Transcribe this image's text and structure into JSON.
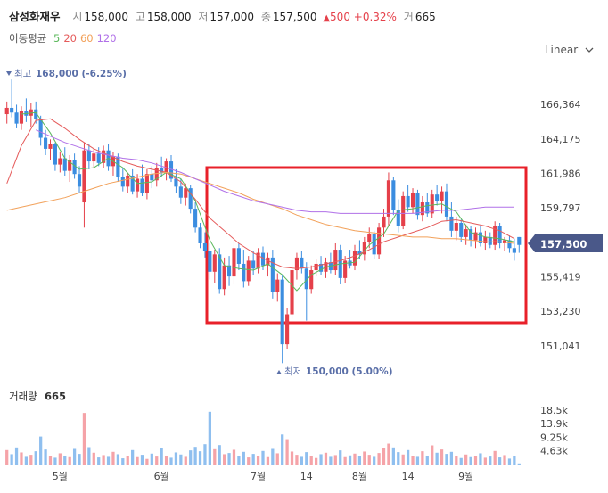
{
  "header": {
    "name": "삼성화재우",
    "items": [
      {
        "label": "시",
        "value": "158,000"
      },
      {
        "label": "고",
        "value": "158,000"
      },
      {
        "label": "저",
        "value": "157,000"
      },
      {
        "label": "종",
        "value": "157,500"
      }
    ],
    "change": "500",
    "change_pct": "+0.32%",
    "volume_label": "거",
    "volume": "665"
  },
  "chart_data": {
    "type": "candlestick",
    "ma_title": "이동평균",
    "scale_mode": "Linear",
    "max_label": {
      "prefix": "최고",
      "text": "168,000 (-6.25%)"
    },
    "min_label": {
      "prefix": "최저",
      "text": "150,000 (5.00%)"
    },
    "volume_title": "거래량",
    "volume_now": "665",
    "last_price": {
      "value": 157500,
      "label": "157,500"
    },
    "up_color": "#e5404a",
    "down_color": "#3b8de0",
    "volume_up_color": "#f5a3a8",
    "volume_down_color": "#8fbfef",
    "ylim": [
      149000,
      168800
    ],
    "yticks": [
      {
        "value": 166364,
        "label": "166,364"
      },
      {
        "value": 164175,
        "label": "164,175"
      },
      {
        "value": 161986,
        "label": "161,986"
      },
      {
        "value": 159797,
        "label": "159,797"
      },
      {
        "value": 155419,
        "label": "155,419"
      },
      {
        "value": 153230,
        "label": "153,230"
      },
      {
        "value": 151041,
        "label": "151,041"
      }
    ],
    "volume_lim": [
      0,
      24800
    ],
    "volume_ticks": [
      {
        "value": 18500,
        "label": "18.5k"
      },
      {
        "value": 13875,
        "label": "13.9k"
      },
      {
        "value": 9250,
        "label": "9.25k"
      },
      {
        "value": 4625,
        "label": "4.63k"
      }
    ],
    "xticks": [
      {
        "value": 11,
        "label": "5월"
      },
      {
        "value": 32,
        "label": "6월"
      },
      {
        "value": 52,
        "label": "7월"
      },
      {
        "value": 62,
        "label": "14"
      },
      {
        "value": 73,
        "label": "8월"
      },
      {
        "value": 83,
        "label": "14"
      },
      {
        "value": 95,
        "label": "9월"
      }
    ],
    "grid": false,
    "candles": [
      [
        165800,
        166600,
        165200,
        166200
      ],
      [
        166200,
        168000,
        165600,
        165900
      ],
      [
        165900,
        166400,
        164900,
        165200
      ],
      [
        165200,
        166300,
        164800,
        166000
      ],
      [
        166000,
        166800,
        165300,
        165700
      ],
      [
        165700,
        166500,
        165000,
        166100
      ],
      [
        166100,
        166600,
        165200,
        165500
      ],
      [
        165500,
        165700,
        163800,
        164300
      ],
      [
        164300,
        164800,
        163200,
        163600
      ],
      [
        163600,
        164200,
        162900,
        163900
      ],
      [
        163900,
        164000,
        162200,
        162600
      ],
      [
        162600,
        163400,
        162100,
        163000
      ],
      [
        163000,
        163700,
        161900,
        162200
      ],
      [
        162200,
        163200,
        161500,
        162900
      ],
      [
        162900,
        163300,
        161700,
        162000
      ],
      [
        162000,
        162500,
        160800,
        161200
      ],
      [
        160200,
        164000,
        158600,
        163500
      ],
      [
        163500,
        163900,
        162300,
        162800
      ],
      [
        162800,
        163600,
        162400,
        163300
      ],
      [
        163300,
        163700,
        162500,
        162700
      ],
      [
        162700,
        163800,
        162400,
        163500
      ],
      [
        163500,
        163900,
        162200,
        162500
      ],
      [
        162500,
        163400,
        161900,
        163100
      ],
      [
        163100,
        163300,
        161500,
        161800
      ],
      [
        161800,
        162400,
        160900,
        161200
      ],
      [
        161200,
        162100,
        160800,
        161900
      ],
      [
        161900,
        162300,
        160700,
        160900
      ],
      [
        160900,
        162000,
        160500,
        161700
      ],
      [
        161700,
        162600,
        160600,
        160800
      ],
      [
        160800,
        162300,
        160400,
        162000
      ],
      [
        162000,
        162500,
        161100,
        161600
      ],
      [
        161600,
        162700,
        161200,
        162400
      ],
      [
        162400,
        163100,
        161800,
        162100
      ],
      [
        162100,
        163000,
        161600,
        162800
      ],
      [
        162800,
        163200,
        161500,
        161700
      ],
      [
        161700,
        162300,
        160800,
        161200
      ],
      [
        161200,
        161700,
        160100,
        160500
      ],
      [
        160500,
        161400,
        160000,
        161100
      ],
      [
        161100,
        161300,
        159500,
        159800
      ],
      [
        159800,
        160200,
        158300,
        158600
      ],
      [
        158600,
        158900,
        157300,
        157600
      ],
      [
        157600,
        158300,
        156700,
        157100
      ],
      [
        157100,
        157600,
        155300,
        155800
      ],
      [
        155800,
        157200,
        155100,
        156900
      ],
      [
        156900,
        157300,
        154400,
        154700
      ],
      [
        154700,
        156700,
        154300,
        156200
      ],
      [
        156200,
        156800,
        154900,
        155500
      ],
      [
        155500,
        157800,
        155000,
        157300
      ],
      [
        157300,
        157600,
        155900,
        156300
      ],
      [
        156300,
        157200,
        154800,
        155200
      ],
      [
        155200,
        156800,
        154900,
        156500
      ],
      [
        156500,
        157100,
        155600,
        156000
      ],
      [
        156000,
        157300,
        155700,
        157000
      ],
      [
        157000,
        157400,
        155900,
        156200
      ],
      [
        156200,
        157000,
        155500,
        156700
      ],
      [
        156700,
        157200,
        154100,
        154500
      ],
      [
        154500,
        155700,
        153900,
        155300
      ],
      [
        155300,
        155600,
        150000,
        151200
      ],
      [
        151200,
        153500,
        150900,
        153100
      ],
      [
        153100,
        156300,
        152800,
        155900
      ],
      [
        155900,
        157000,
        155300,
        156700
      ],
      [
        156700,
        157100,
        155700,
        156000
      ],
      [
        156000,
        156400,
        152700,
        154700
      ],
      [
        154700,
        156200,
        154400,
        155900
      ],
      [
        155900,
        156600,
        155500,
        156300
      ],
      [
        156300,
        156800,
        155600,
        155800
      ],
      [
        155800,
        156700,
        155400,
        156400
      ],
      [
        156400,
        157000,
        155700,
        155900
      ],
      [
        155900,
        157600,
        155600,
        157200
      ],
      [
        157200,
        157500,
        155000,
        155400
      ],
      [
        155400,
        156800,
        155100,
        156500
      ],
      [
        156500,
        157200,
        156000,
        156200
      ],
      [
        156200,
        157500,
        155900,
        157100
      ],
      [
        157100,
        157800,
        156600,
        156900
      ],
      [
        156900,
        158000,
        156500,
        157700
      ],
      [
        157700,
        158600,
        157300,
        158200
      ],
      [
        158200,
        158400,
        156600,
        156900
      ],
      [
        156900,
        158900,
        156600,
        158600
      ],
      [
        158600,
        159800,
        158000,
        159300
      ],
      [
        159300,
        162100,
        158700,
        161600
      ],
      [
        161600,
        161800,
        159400,
        159700
      ],
      [
        159700,
        160400,
        158300,
        158700
      ],
      [
        158700,
        160900,
        158500,
        160600
      ],
      [
        160600,
        161300,
        159600,
        159900
      ],
      [
        159900,
        161100,
        159500,
        160800
      ],
      [
        160800,
        161000,
        159100,
        159400
      ],
      [
        159400,
        160600,
        159000,
        160200
      ],
      [
        160200,
        160800,
        159300,
        159500
      ],
      [
        159500,
        161000,
        159200,
        160700
      ],
      [
        160700,
        161300,
        160000,
        160300
      ],
      [
        160300,
        161200,
        159500,
        160900
      ],
      [
        160900,
        161400,
        159000,
        159300
      ],
      [
        159300,
        160200,
        158000,
        158400
      ],
      [
        158400,
        159300,
        157800,
        158900
      ],
      [
        158900,
        159100,
        157700,
        158000
      ],
      [
        158000,
        158800,
        157500,
        158500
      ],
      [
        158500,
        158700,
        157400,
        157800
      ],
      [
        157800,
        158600,
        157300,
        158300
      ],
      [
        158300,
        158700,
        157400,
        157600
      ],
      [
        157600,
        158400,
        157200,
        158000
      ],
      [
        158000,
        158300,
        157300,
        157500
      ],
      [
        157500,
        159000,
        157200,
        158700
      ],
      [
        158700,
        158900,
        157300,
        157600
      ],
      [
        157600,
        158000,
        157100,
        157800
      ],
      [
        157800,
        158100,
        157000,
        157300
      ],
      [
        157300,
        157900,
        156500,
        157000
      ],
      [
        158000,
        158000,
        157000,
        157500
      ]
    ],
    "volume": [
      5200,
      3800,
      6100,
      4400,
      2900,
      3600,
      4800,
      9800,
      5400,
      3200,
      2600,
      4100,
      3300,
      2800,
      5600,
      3900,
      17800,
      6200,
      4300,
      2700,
      3500,
      2900,
      4600,
      3800,
      2400,
      3100,
      5200,
      2800,
      3600,
      2200,
      4000,
      3000,
      5800,
      3300,
      2600,
      4400,
      3700,
      2900,
      5100,
      6300,
      4800,
      7200,
      18200,
      5500,
      6900,
      3800,
      4200,
      5300,
      3100,
      4600,
      2700,
      3900,
      3300,
      4900,
      2800,
      5600,
      4100,
      10500,
      8900,
      4700,
      3600,
      2900,
      4500,
      3200,
      2500,
      3800,
      4300,
      2900,
      3500,
      5100,
      2800,
      3400,
      4000,
      3100,
      4700,
      3600,
      2900,
      4200,
      5800,
      7400,
      6100,
      4500,
      3700,
      5200,
      3300,
      2900,
      4800,
      3100,
      6800,
      4300,
      5400,
      3900,
      4600,
      3200,
      2500,
      3700,
      2800,
      3300,
      4100,
      2600,
      3000,
      4900,
      2700,
      3500,
      2300,
      3100,
      665
    ],
    "series": [
      {
        "name": "5",
        "color": "#5cb85c",
        "x": [
          0,
          3,
          6,
          9,
          12,
          15,
          18,
          21,
          24,
          27,
          30,
          33,
          36,
          39,
          42,
          45,
          48,
          51,
          54,
          57,
          60,
          63,
          66,
          69,
          72,
          75,
          78,
          81,
          84,
          87,
          90,
          93,
          96,
          99,
          102,
          105
        ],
        "values": [
          null,
          165800,
          165900,
          164600,
          163000,
          162300,
          162400,
          163000,
          162400,
          161400,
          161500,
          162100,
          161700,
          160300,
          157800,
          156200,
          156000,
          155900,
          156300,
          155600,
          154600,
          155600,
          156100,
          156300,
          156400,
          157500,
          158200,
          159700,
          159800,
          160000,
          160100,
          159600,
          158300,
          158000,
          157900,
          157700
        ]
      },
      {
        "name": "20",
        "color": "#e55b5b",
        "x": [
          0,
          3,
          6,
          9,
          12,
          15,
          18,
          21,
          24,
          27,
          30,
          33,
          36,
          39,
          42,
          45,
          48,
          51,
          54,
          57,
          60,
          63,
          66,
          69,
          72,
          75,
          78,
          81,
          84,
          87,
          90,
          93,
          96,
          99,
          102,
          105
        ],
        "values": [
          161400,
          163800,
          165400,
          165500,
          164900,
          164200,
          163600,
          163200,
          162800,
          162500,
          162300,
          162100,
          161500,
          160400,
          159200,
          158400,
          157600,
          157000,
          156500,
          156100,
          156000,
          156100,
          156300,
          156500,
          156800,
          157200,
          157700,
          158000,
          158300,
          158600,
          159000,
          159100,
          158900,
          158700,
          158400,
          157900
        ]
      },
      {
        "name": "60",
        "color": "#f2a15a",
        "x": [
          0,
          3,
          6,
          9,
          12,
          15,
          18,
          21,
          24,
          27,
          30,
          33,
          36,
          39,
          42,
          45,
          48,
          51,
          54,
          57,
          60,
          63,
          66,
          69,
          72,
          75,
          78,
          81,
          84,
          87,
          90,
          93,
          96,
          99,
          102,
          105
        ],
        "values": [
          159700,
          159900,
          160100,
          160300,
          160500,
          160800,
          161100,
          161400,
          161600,
          161800,
          162000,
          162100,
          162000,
          161700,
          161400,
          161100,
          160800,
          160400,
          160100,
          159800,
          159400,
          159100,
          158800,
          158600,
          158400,
          158300,
          158200,
          158100,
          158000,
          158000,
          157900,
          157900,
          157800,
          157700,
          157700,
          157600
        ]
      },
      {
        "name": "120",
        "color": "#b070e8",
        "x": [
          0,
          3,
          6,
          9,
          12,
          15,
          18,
          21,
          24,
          27,
          30,
          33,
          36,
          39,
          42,
          45,
          48,
          51,
          54,
          57,
          60,
          63,
          66,
          69,
          72,
          75,
          78,
          81,
          84,
          87,
          90,
          93,
          96,
          99,
          102,
          105
        ],
        "values": [
          null,
          null,
          164800,
          164400,
          164000,
          163700,
          163400,
          163200,
          163000,
          162900,
          162700,
          162400,
          162100,
          161700,
          161300,
          160900,
          160600,
          160300,
          160100,
          159900,
          159700,
          159600,
          159600,
          159500,
          159500,
          159500,
          159500,
          159500,
          159500,
          159600,
          159700,
          159700,
          159800,
          159900,
          159900,
          159900
        ]
      }
    ]
  }
}
